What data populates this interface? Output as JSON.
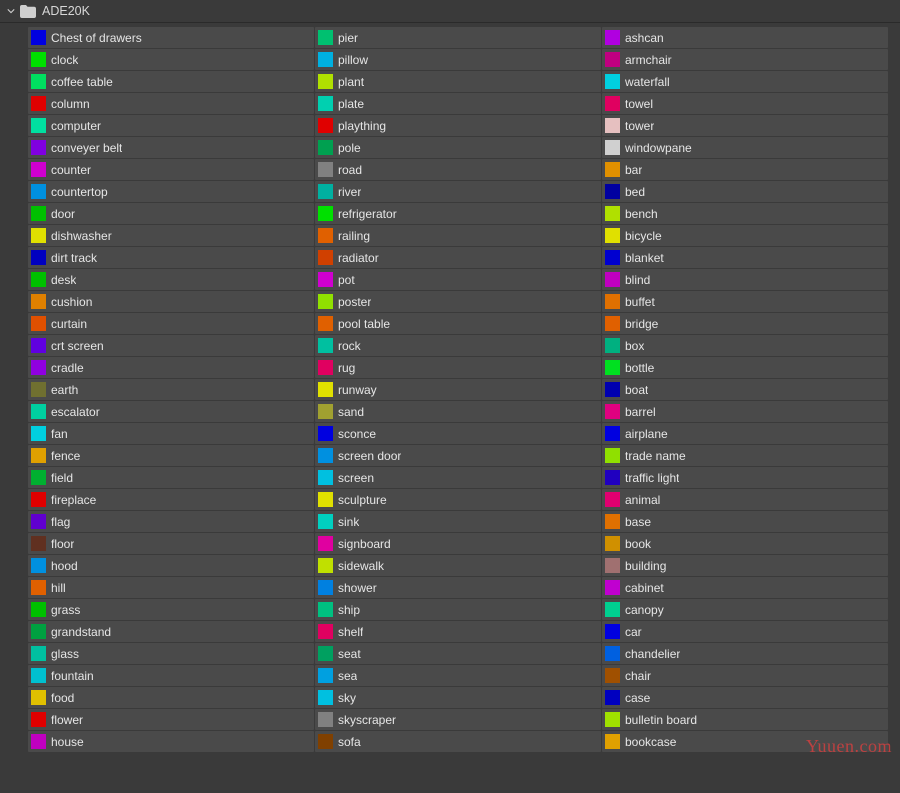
{
  "header": {
    "title": "ADE20K"
  },
  "row_background": "#4a4a4a",
  "label_color": "#e6e6e6",
  "columns": [
    [
      {
        "label": "Chest of drawers",
        "color": "#0000e0"
      },
      {
        "label": "clock",
        "color": "#00e000"
      },
      {
        "label": "coffee table",
        "color": "#00e060"
      },
      {
        "label": "column",
        "color": "#e00000"
      },
      {
        "label": "computer",
        "color": "#00e0a0"
      },
      {
        "label": "conveyer belt",
        "color": "#8000e0"
      },
      {
        "label": "counter",
        "color": "#d000d0"
      },
      {
        "label": "countertop",
        "color": "#0090e0"
      },
      {
        "label": "door",
        "color": "#00c000"
      },
      {
        "label": "dishwasher",
        "color": "#e0e000"
      },
      {
        "label": "dirt track",
        "color": "#0000c0"
      },
      {
        "label": "desk",
        "color": "#00c000"
      },
      {
        "label": "cushion",
        "color": "#e08000"
      },
      {
        "label": "curtain",
        "color": "#e05000"
      },
      {
        "label": "crt screen",
        "color": "#6000e0"
      },
      {
        "label": "cradle",
        "color": "#9000e0"
      },
      {
        "label": "earth",
        "color": "#707030"
      },
      {
        "label": "escalator",
        "color": "#00d0a0"
      },
      {
        "label": "fan",
        "color": "#00d0e0"
      },
      {
        "label": "fence",
        "color": "#e0a000"
      },
      {
        "label": "field",
        "color": "#00b030"
      },
      {
        "label": "fireplace",
        "color": "#e00000"
      },
      {
        "label": "flag",
        "color": "#6000d0"
      },
      {
        "label": "floor",
        "color": "#603020"
      },
      {
        "label": "hood",
        "color": "#0090e0"
      },
      {
        "label": "hill",
        "color": "#e06000"
      },
      {
        "label": "grass",
        "color": "#00c000"
      },
      {
        "label": "grandstand",
        "color": "#00a040"
      },
      {
        "label": "glass",
        "color": "#00c0a0"
      },
      {
        "label": "fountain",
        "color": "#00c0d0"
      },
      {
        "label": "food",
        "color": "#e0c000"
      },
      {
        "label": "flower",
        "color": "#e00000"
      },
      {
        "label": "house",
        "color": "#c000c0"
      }
    ],
    [
      {
        "label": "pier",
        "color": "#00c070"
      },
      {
        "label": "pillow",
        "color": "#00b0e0"
      },
      {
        "label": "plant",
        "color": "#b0e000"
      },
      {
        "label": "plate",
        "color": "#00d0b0"
      },
      {
        "label": "plaything",
        "color": "#e00000"
      },
      {
        "label": "pole",
        "color": "#00a050"
      },
      {
        "label": "road",
        "color": "#808080"
      },
      {
        "label": "river",
        "color": "#00b0a0"
      },
      {
        "label": "refrigerator",
        "color": "#00e000"
      },
      {
        "label": "railing",
        "color": "#e06000"
      },
      {
        "label": "radiator",
        "color": "#d04000"
      },
      {
        "label": "pot",
        "color": "#d000d0"
      },
      {
        "label": "poster",
        "color": "#90e000"
      },
      {
        "label": "pool table",
        "color": "#e06000"
      },
      {
        "label": "rock",
        "color": "#00c0a0"
      },
      {
        "label": "rug",
        "color": "#e00060"
      },
      {
        "label": "runway",
        "color": "#e0e000"
      },
      {
        "label": "sand",
        "color": "#a0a030"
      },
      {
        "label": "sconce",
        "color": "#0000e0"
      },
      {
        "label": "screen door",
        "color": "#0090e0"
      },
      {
        "label": "screen",
        "color": "#00c0e0"
      },
      {
        "label": "sculpture",
        "color": "#e0e000"
      },
      {
        "label": "sink",
        "color": "#00d0c0"
      },
      {
        "label": "signboard",
        "color": "#e000a0"
      },
      {
        "label": "sidewalk",
        "color": "#c0e000"
      },
      {
        "label": "shower",
        "color": "#0080e0"
      },
      {
        "label": "ship",
        "color": "#00c080"
      },
      {
        "label": "shelf",
        "color": "#e00060"
      },
      {
        "label": "seat",
        "color": "#00a060"
      },
      {
        "label": "sea",
        "color": "#00a0e0"
      },
      {
        "label": "sky",
        "color": "#00c0e0"
      },
      {
        "label": "skyscraper",
        "color": "#808080"
      },
      {
        "label": "sofa",
        "color": "#804000"
      }
    ],
    [
      {
        "label": "ashcan",
        "color": "#b000e0"
      },
      {
        "label": "armchair",
        "color": "#c00080"
      },
      {
        "label": "waterfall",
        "color": "#00d0e0"
      },
      {
        "label": "towel",
        "color": "#e00060"
      },
      {
        "label": "tower",
        "color": "#e6c0c0"
      },
      {
        "label": "windowpane",
        "color": "#d0d0d0"
      },
      {
        "label": "bar",
        "color": "#e09000"
      },
      {
        "label": "bed",
        "color": "#0000a0"
      },
      {
        "label": "bench",
        "color": "#b0e000"
      },
      {
        "label": "bicycle",
        "color": "#e0e000"
      },
      {
        "label": "blanket",
        "color": "#0000d0"
      },
      {
        "label": "blind",
        "color": "#c000c0"
      },
      {
        "label": "buffet",
        "color": "#e07000"
      },
      {
        "label": "bridge",
        "color": "#e06000"
      },
      {
        "label": "box",
        "color": "#00b080"
      },
      {
        "label": "bottle",
        "color": "#00e020"
      },
      {
        "label": "boat",
        "color": "#0000b0"
      },
      {
        "label": "barrel",
        "color": "#e00080"
      },
      {
        "label": "airplane",
        "color": "#0000e0"
      },
      {
        "label": "trade name",
        "color": "#90e000"
      },
      {
        "label": "traffic light",
        "color": "#2000c0"
      },
      {
        "label": "animal",
        "color": "#e00070"
      },
      {
        "label": "base",
        "color": "#e07000"
      },
      {
        "label": "book",
        "color": "#d09000"
      },
      {
        "label": "building",
        "color": "#a07070"
      },
      {
        "label": "cabinet",
        "color": "#c000d0"
      },
      {
        "label": "canopy",
        "color": "#00d090"
      },
      {
        "label": "car",
        "color": "#0000e0"
      },
      {
        "label": "chandelier",
        "color": "#0060e0"
      },
      {
        "label": "chair",
        "color": "#a05000"
      },
      {
        "label": "case",
        "color": "#0000c0"
      },
      {
        "label": "bulletin board",
        "color": "#a0e000"
      },
      {
        "label": "bookcase",
        "color": "#e0a000"
      }
    ]
  ],
  "watermark": "Yuuen.com"
}
